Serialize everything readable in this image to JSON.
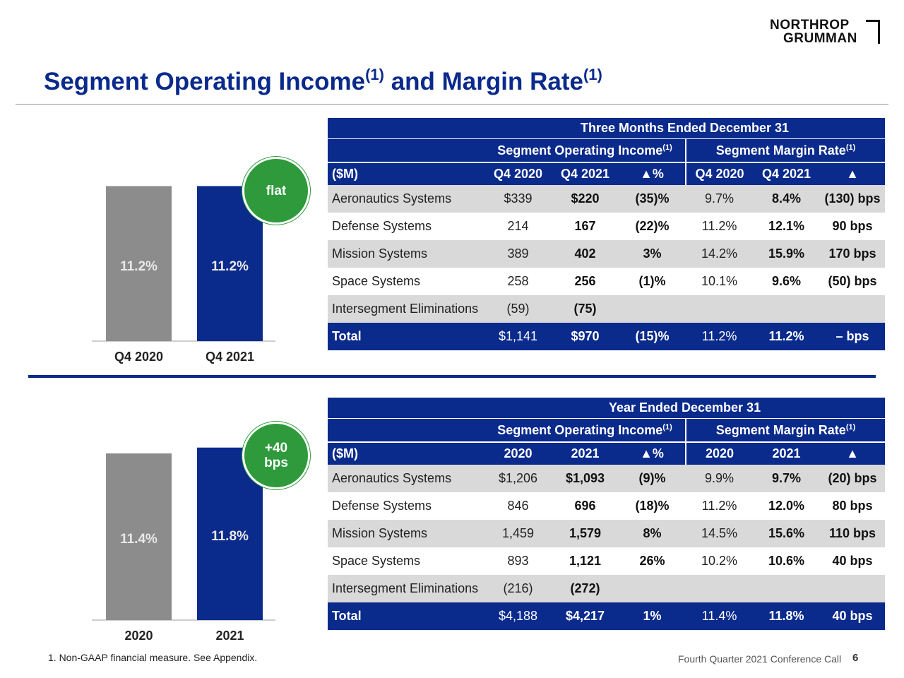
{
  "logo": {
    "line1": "NORTHROP",
    "line2": "GRUMMAN"
  },
  "title": {
    "main": "Segment Operating Income",
    "sup1": "(1)",
    "mid": " and Margin Rate",
    "sup2": "(1)"
  },
  "colors": {
    "navy": "#0a2a8c",
    "gray": "#8c8c8c",
    "green": "#2e9a3c",
    "shade": "#d9d9d9"
  },
  "chart_data": [
    {
      "type": "bar",
      "categories": [
        "Q4 2020",
        "Q4 2021"
      ],
      "values": [
        11.2,
        11.2
      ],
      "data_labels": [
        "11.2%",
        "11.2%"
      ],
      "colors": [
        "#8c8c8c",
        "#0a2a8c"
      ],
      "badge": "flat",
      "title": "",
      "xlabel": "",
      "ylabel": ""
    },
    {
      "type": "bar",
      "categories": [
        "2020",
        "2021"
      ],
      "values": [
        11.4,
        11.8
      ],
      "data_labels": [
        "11.4%",
        "11.8%"
      ],
      "colors": [
        "#8c8c8c",
        "#0a2a8c"
      ],
      "badge": "+40\nbps",
      "title": "",
      "xlabel": "",
      "ylabel": ""
    }
  ],
  "tables": [
    {
      "period": "Three Months Ended December 31",
      "group1": "Segment Operating Income",
      "group2": "Segment Margin Rate",
      "sup": "(1)",
      "unit": "($M)",
      "columns": [
        "Q4 2020",
        "Q4 2021",
        "▲%",
        "Q4 2020",
        "Q4 2021",
        "▲"
      ],
      "rows": [
        {
          "label": "Aeronautics Systems",
          "v": [
            "$339",
            "$220",
            "(35)%",
            "9.7%",
            "8.4%",
            "(130) bps"
          ]
        },
        {
          "label": "Defense Systems",
          "v": [
            "214",
            "167",
            "(22)%",
            "11.2%",
            "12.1%",
            "90 bps"
          ]
        },
        {
          "label": "Mission Systems",
          "v": [
            "389",
            "402",
            "3%",
            "14.2%",
            "15.9%",
            "170 bps"
          ]
        },
        {
          "label": "Space Systems",
          "v": [
            "258",
            "256",
            "(1)%",
            "10.1%",
            "9.6%",
            "(50) bps"
          ]
        },
        {
          "label": "Intersegment Eliminations",
          "v": [
            "(59)",
            "(75)",
            "",
            "",
            "",
            ""
          ]
        }
      ],
      "total": {
        "label": "Total",
        "v": [
          "$1,141",
          "$970",
          "(15)%",
          "11.2%",
          "11.2%",
          "– bps"
        ]
      }
    },
    {
      "period": "Year Ended December 31",
      "group1": "Segment Operating Income",
      "group2": "Segment Margin Rate",
      "sup": "(1)",
      "unit": "($M)",
      "columns": [
        "2020",
        "2021",
        "▲%",
        "2020",
        "2021",
        "▲"
      ],
      "rows": [
        {
          "label": "Aeronautics Systems",
          "v": [
            "$1,206",
            "$1,093",
            "(9)%",
            "9.9%",
            "9.7%",
            "(20) bps"
          ]
        },
        {
          "label": "Defense Systems",
          "v": [
            "846",
            "696",
            "(18)%",
            "11.2%",
            "12.0%",
            "80 bps"
          ]
        },
        {
          "label": "Mission Systems",
          "v": [
            "1,459",
            "1,579",
            "8%",
            "14.5%",
            "15.6%",
            "110 bps"
          ]
        },
        {
          "label": "Space Systems",
          "v": [
            "893",
            "1,121",
            "26%",
            "10.2%",
            "10.6%",
            "40 bps"
          ]
        },
        {
          "label": "Intersegment Eliminations",
          "v": [
            "(216)",
            "(272)",
            "",
            "",
            "",
            ""
          ]
        }
      ],
      "total": {
        "label": "Total",
        "v": [
          "$4,188",
          "$4,217",
          "1%",
          "11.4%",
          "11.8%",
          "40 bps"
        ]
      }
    }
  ],
  "footnote": "1.  Non-GAAP financial measure. See Appendix.",
  "footer": {
    "text": "Fourth Quarter 2021 Conference Call",
    "page": "6"
  }
}
